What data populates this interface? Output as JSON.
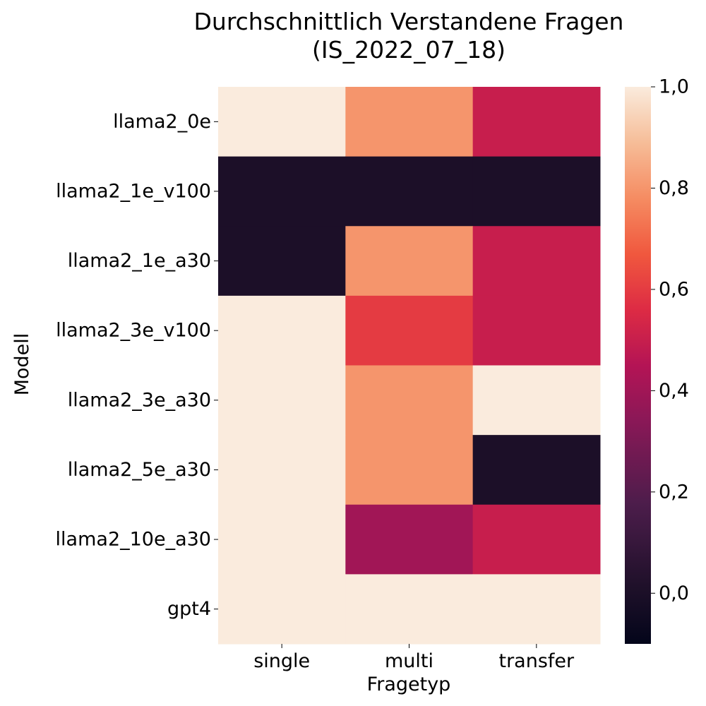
{
  "chart_data": {
    "type": "heatmap",
    "title_lines": [
      "Durchschnittlich Verstandene Fragen",
      "(IS_2022_07_18)"
    ],
    "xlabel": "Fragetyp",
    "ylabel": "Modell",
    "x_categories": [
      "single",
      "multi",
      "transfer"
    ],
    "y_categories": [
      "llama2_0e",
      "llama2_1e_v100",
      "llama2_1e_a30",
      "llama2_3e_v100",
      "llama2_3e_a30",
      "llama2_5e_a30",
      "llama2_10e_a30",
      "gpt4"
    ],
    "values": [
      [
        1.0,
        0.8,
        0.5
      ],
      [
        0.0,
        0.0,
        0.0
      ],
      [
        0.0,
        0.8,
        0.5
      ],
      [
        1.0,
        0.6,
        0.5
      ],
      [
        1.0,
        0.8,
        1.0
      ],
      [
        1.0,
        0.8,
        0.0
      ],
      [
        1.0,
        0.4,
        0.5
      ],
      [
        1.0,
        1.0,
        1.0
      ]
    ],
    "colorbar": {
      "range": [
        -0.1,
        1.0
      ],
      "ticks": [
        0.0,
        0.2,
        0.4,
        0.6,
        0.8,
        1.0
      ],
      "tick_labels": [
        "0,0",
        "0,2",
        "0,4",
        "0,6",
        "0,8",
        "1,0"
      ],
      "colormap": "rocket"
    },
    "grid": false
  }
}
